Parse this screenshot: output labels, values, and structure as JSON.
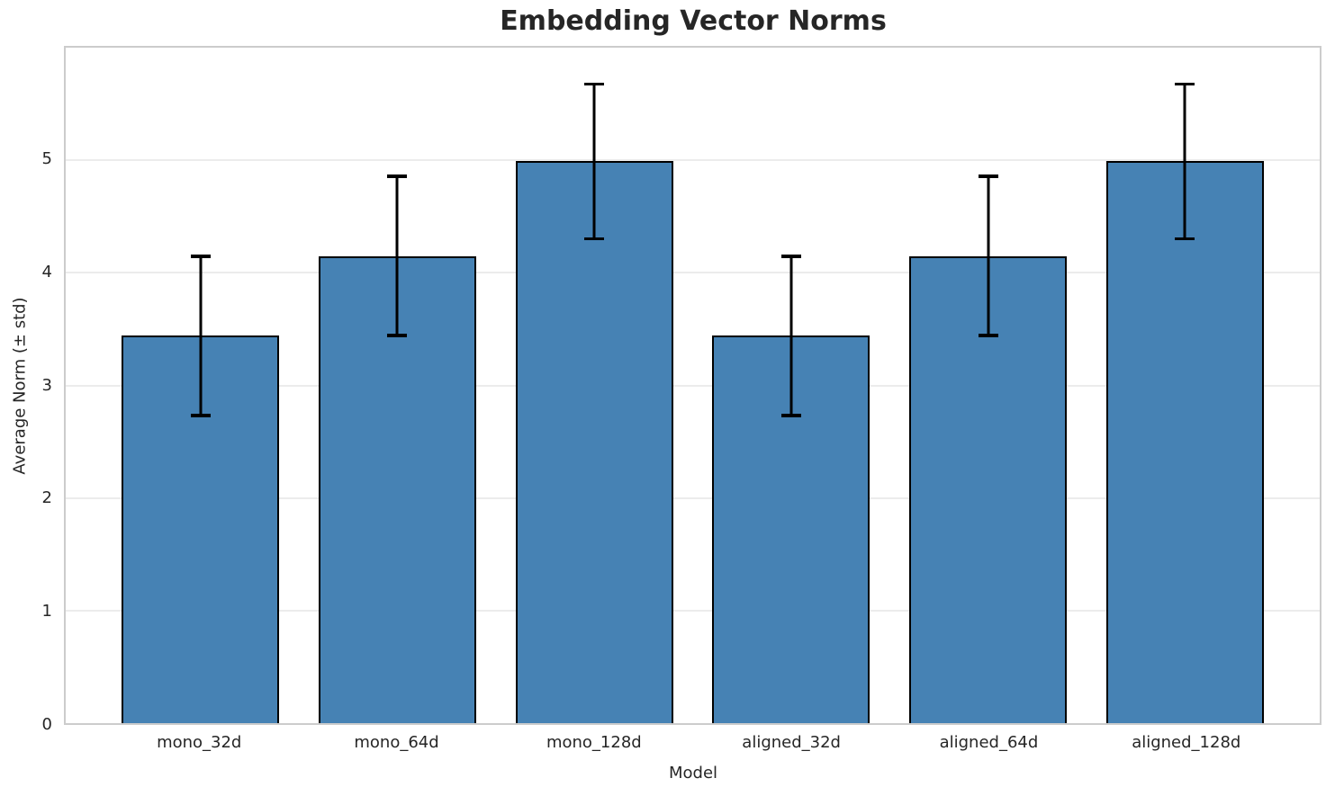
{
  "chart_data": {
    "type": "bar",
    "title": "Embedding Vector Norms",
    "xlabel": "Model",
    "ylabel": "Average Norm (± std)",
    "categories": [
      "mono_32d",
      "mono_64d",
      "mono_128d",
      "aligned_32d",
      "aligned_64d",
      "aligned_128d"
    ],
    "values": [
      3.44,
      4.15,
      4.99,
      3.44,
      4.15,
      4.99
    ],
    "errors": [
      0.72,
      0.72,
      0.7,
      0.72,
      0.72,
      0.7
    ],
    "yticks": [
      0,
      1,
      2,
      3,
      4,
      5
    ],
    "ylim": [
      0,
      6
    ],
    "xlim": [
      -0.685,
      5.685
    ],
    "bar_width": 0.8,
    "grid": "horizontal",
    "legend": "none",
    "colors": {
      "bar_fill": "#4682B4",
      "bar_edge": "#000000",
      "error_bar": "#000000",
      "gridline": "#ECECEC",
      "spine": "#CCCCCC",
      "text": "#262626",
      "background": "#FFFFFF"
    }
  }
}
